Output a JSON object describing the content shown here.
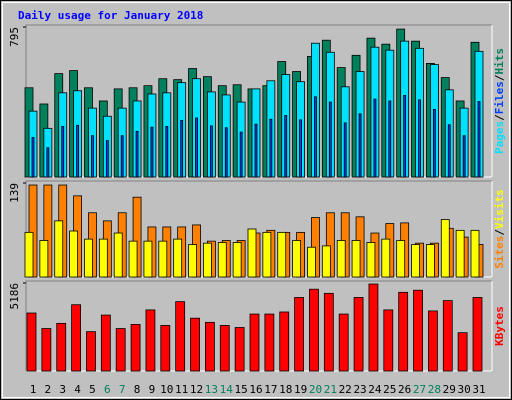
{
  "chart_data": {
    "type": "bar",
    "title": "Daily usage for January 2018",
    "categories": [
      "1",
      "2",
      "3",
      "4",
      "5",
      "6",
      "7",
      "8",
      "9",
      "10",
      "11",
      "12",
      "13",
      "14",
      "15",
      "16",
      "17",
      "18",
      "19",
      "20",
      "21",
      "22",
      "23",
      "24",
      "25",
      "26",
      "27",
      "28",
      "29",
      "30",
      "31"
    ],
    "category_colors": [
      "#000000",
      "#000000",
      "#000000",
      "#000000",
      "#000000",
      "#00805c",
      "#00805c",
      "#000000",
      "#000000",
      "#000000",
      "#000000",
      "#000000",
      "#00805c",
      "#00805c",
      "#000000",
      "#000000",
      "#000000",
      "#000000",
      "#000000",
      "#00805c",
      "#00805c",
      "#000000",
      "#000000",
      "#000000",
      "#000000",
      "#000000",
      "#00805c",
      "#00805c",
      "#000000",
      "#000000",
      "#000000"
    ],
    "axis_label_separator": "/",
    "panels": [
      {
        "ylim": [
          0,
          795
        ],
        "yticks": [
          795
        ],
        "series": [
          {
            "name": "Hits",
            "color": "#00805c",
            "values": [
              473,
              387,
              548,
              564,
              473,
              403,
              467,
              473,
              484,
              521,
              516,
              575,
              532,
              484,
              489,
              467,
              484,
              612,
              559,
              639,
              725,
              580,
              645,
              736,
              704,
              784,
              720,
              602,
              527,
              403,
              714
            ]
          },
          {
            "name": "Files",
            "color": "#0040ff",
            "values": [
              209,
              155,
              268,
              274,
              219,
              193,
              219,
              242,
              264,
              268,
              300,
              313,
              271,
              261,
              238,
              280,
              306,
              326,
              303,
              425,
              397,
              287,
              335,
              413,
              403,
              432,
              409,
              358,
              277,
              219,
              400
            ]
          },
          {
            "name": "Pages",
            "color": "#00e0ff",
            "values": [
              349,
              258,
              446,
              457,
              365,
              322,
              365,
              403,
              440,
              446,
              500,
              521,
              451,
              435,
              397,
              467,
              510,
              543,
              505,
              709,
              661,
              478,
              559,
              688,
              672,
              720,
              682,
              596,
              462,
              365,
              666
            ]
          }
        ]
      },
      {
        "ylim": [
          0,
          139
        ],
        "yticks": [
          139
        ],
        "series": [
          {
            "name": "Visits",
            "color": "#ffff00",
            "values": [
              66,
              54,
              83,
              68,
              56,
              56,
              65,
              53,
              53,
              53,
              56,
              48,
              50,
              51,
              51,
              71,
              66,
              66,
              54,
              44,
              46,
              54,
              54,
              51,
              56,
              54,
              48,
              48,
              85,
              69,
              69
            ]
          },
          {
            "name": "Sites",
            "color": "#ff8000",
            "values": [
              136,
              136,
              136,
              120,
              95,
              83,
              95,
              118,
              74,
              74,
              74,
              77,
              53,
              54,
              54,
              65,
              69,
              66,
              66,
              88,
              95,
              95,
              89,
              65,
              79,
              80,
              50,
              50,
              72,
              59,
              48
            ]
          }
        ]
      },
      {
        "ylim": [
          0,
          5186
        ],
        "yticks": [
          5186
        ],
        "series": [
          {
            "name": "KBytes",
            "color": "#ff0000",
            "values": [
              3417,
              2502,
              2807,
              3905,
              2319,
              3295,
              2502,
              2746,
              3600,
              2685,
              4088,
              3112,
              2868,
              2685,
              2563,
              3356,
              3356,
              3478,
              4332,
              4820,
              4576,
              3356,
              4332,
              5125,
              3600,
              4637,
              4759,
              3539,
              4149,
              2258,
              4332
            ]
          }
        ]
      }
    ]
  }
}
